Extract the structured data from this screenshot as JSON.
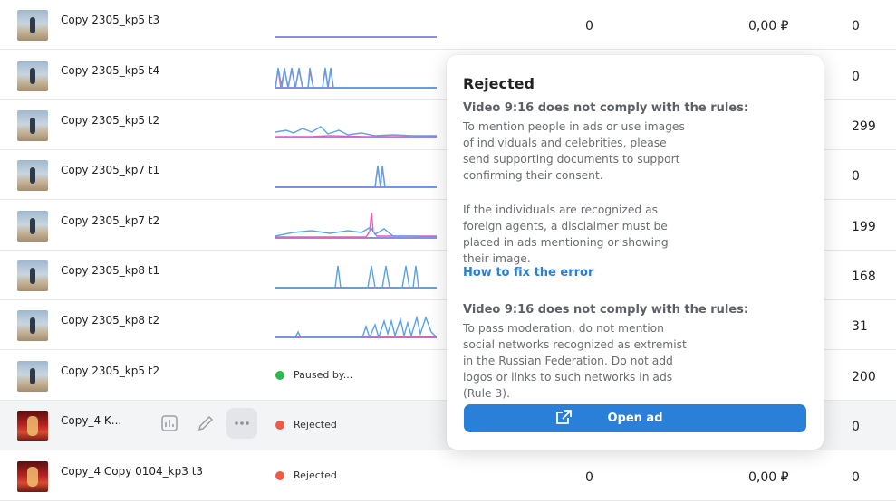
{
  "rows": [
    {
      "name": "Copy 2305_kp5 t3",
      "thumb": "beach",
      "col1": "0",
      "col2": "0,00 ₽",
      "col3": "0"
    },
    {
      "name": "Copy 2305_kp5 t4",
      "thumb": "beach",
      "col1": "",
      "col2": "",
      "col3": "0"
    },
    {
      "name": "Copy 2305_kp5 t2",
      "thumb": "beach",
      "col1": "",
      "col2": "",
      "col3": "299"
    },
    {
      "name": "Copy 2305_kp7 t1",
      "thumb": "beach",
      "col1": "",
      "col2": "",
      "col3": "0"
    },
    {
      "name": "Copy 2305_kp7 t2",
      "thumb": "beach",
      "col1": "",
      "col2": "",
      "col3": "199"
    },
    {
      "name": "Copy 2305_kp8 t1",
      "thumb": "beach",
      "col1": "",
      "col2": "",
      "col3": "168"
    },
    {
      "name": "Copy 2305_kp8 t2",
      "thumb": "beach",
      "col1": "",
      "col2": "",
      "col3": "31"
    },
    {
      "name": "Copy 2305_kp5 t2",
      "thumb": "beach",
      "status": "Paused by...",
      "col1": "",
      "col2": "",
      "col3": "200"
    },
    {
      "name": "Copy_4 K...",
      "thumb": "red",
      "status": "Rejected",
      "col1": "",
      "col2": "",
      "col3": "0"
    },
    {
      "name": "Copy_4 Copy 0104_kp3 t3",
      "thumb": "red",
      "status": "Rejected",
      "col1": "0",
      "col2": "0,00 ₽",
      "col3": "0"
    }
  ],
  "colors": {
    "green": "#2cb84c",
    "red": "#ee5a45",
    "accent": "#2a7fd9",
    "spark_blue": "#5aa2e8",
    "spark_pink": "#ea5bb0",
    "spark_base": "#8e8de0"
  },
  "row_actions": [
    {
      "icon": "bar-chart-icon"
    },
    {
      "icon": "pencil-icon"
    },
    {
      "icon": "more-dots-icon"
    }
  ],
  "popover": {
    "title": "Rejected",
    "heading1": "Video 9:16 does not comply with the rules:",
    "para1a": "To mention people in ads or use images of individuals and celebrities, please send supporting documents to support confirming their consent.",
    "para1b": "If the individuals are recognized as foreign agents, a disclaimer must be placed in ads mentioning or showing their image.",
    "link": "How to fix the error",
    "heading2": "Video 9:16 does not comply with the rules:",
    "para2": "To pass moderation, do not mention social networks recognized as extremist in the Russian Federation. Do not add logos or links to such networks in ads (Rule 3).",
    "button": "Open ad",
    "button_icon": "external-link-icon"
  }
}
